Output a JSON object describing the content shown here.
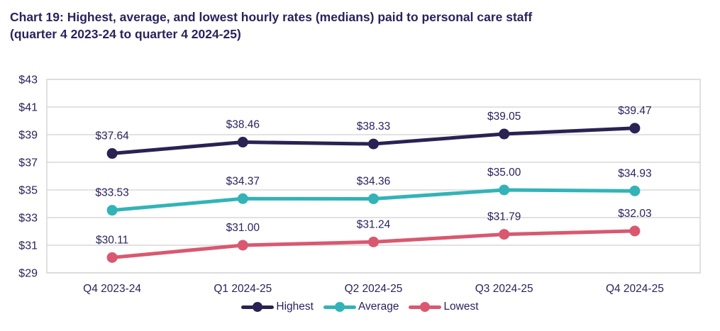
{
  "header": {
    "title_line1": "Chart 19: Highest, average, and lowest hourly rates (medians) paid to personal care staff",
    "title_line2": "(quarter 4 2023-24 to quarter 4 2024-25)"
  },
  "chart_data": {
    "type": "line",
    "title": "Chart 19: Highest, average, and lowest hourly rates (medians) paid to personal care staff (quarter 4 2023-24 to quarter 4 2024-25)",
    "categories": [
      "Q4 2023-24",
      "Q1 2024-25",
      "Q2 2024-25",
      "Q3 2024-25",
      "Q4 2024-25"
    ],
    "series": [
      {
        "name": "Highest",
        "color": "#2a2253",
        "values": [
          37.64,
          38.46,
          38.33,
          39.05,
          39.47
        ]
      },
      {
        "name": "Average",
        "color": "#33b3b7",
        "values": [
          33.53,
          34.37,
          34.36,
          35.0,
          34.93
        ]
      },
      {
        "name": "Lowest",
        "color": "#d95870",
        "values": [
          30.11,
          31.0,
          31.24,
          31.79,
          32.03
        ]
      }
    ],
    "ylim": [
      29,
      43
    ],
    "ytick_step": 2,
    "value_prefix": "$",
    "grid": true,
    "legend_position": "bottom",
    "point_labels_shown": true
  },
  "style": {
    "text_color": "#29235c",
    "grid_color": "#d9d9d9",
    "background": "#ffffff"
  }
}
